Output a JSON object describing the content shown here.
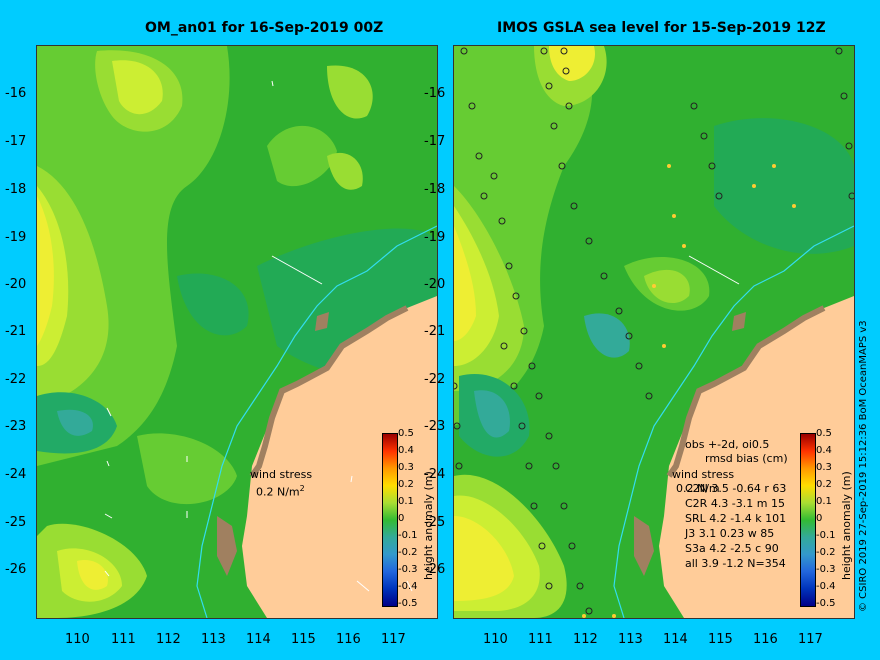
{
  "left_title": "OM_an01 for 16-Sep-2019 00Z",
  "right_title": "IMOS GSLA sea level  for 15-Sep-2019 12Z",
  "y_ticks": [
    "-16",
    "-17",
    "-18",
    "-19",
    "-20",
    "-21",
    "-22",
    "-23",
    "-24",
    "-25",
    "-26"
  ],
  "x_ticks": [
    "110",
    "111",
    "112",
    "113",
    "114",
    "115",
    "116",
    "117"
  ],
  "wind_stress_label": "wind stress",
  "wind_stress_value": "0.2 N/m",
  "wind_stress_sup": "2",
  "colorbar_label": "height anomaly (m)",
  "colorbar_ticks": [
    "0.5",
    "0.4",
    "0.3",
    "0.2",
    "0.1",
    "0",
    "-0.1",
    "-0.2",
    "-0.3",
    "-0.4",
    "-0.5"
  ],
  "stats": {
    "header1": "obs +-2d, oi0.5",
    "header2": "rmsd bias (cm)",
    "rows": [
      "C2N  3.5 -0.64 r 63",
      "C2R   4.3 -3.1 m 15",
      "SRL   4.2 -1.4 k 101",
      "J3    3.1 0.23 w 85",
      "S3a   4.2 -2.5 c 90",
      "all   3.9 -1.2 N=354"
    ]
  },
  "right_wind_label": "wind stress",
  "right_wind_value": "0.2 N/m",
  "credit": "© CSIRO 2019  27-Sep-2019 15:12:36 BoM OceanMAPS v3",
  "colors": {
    "background": "#00ccff",
    "land": "#ffcc99",
    "ocean_green": "#33bb33",
    "light_green": "#99dd33",
    "yellow": "#eeee33"
  }
}
